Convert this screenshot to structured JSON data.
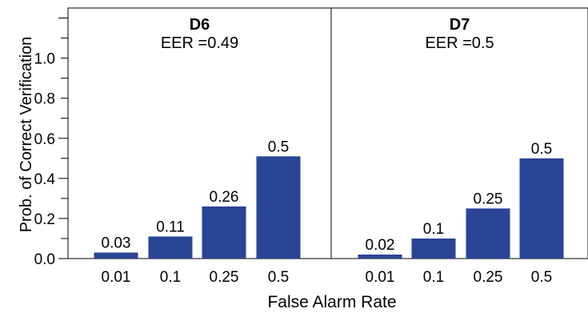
{
  "chart_data": [
    {
      "type": "bar",
      "title": "D6",
      "subtitle": "EER =0.49",
      "categories": [
        "0.01",
        "0.1",
        "0.25",
        "0.5"
      ],
      "values": [
        0.03,
        0.11,
        0.26,
        0.51
      ],
      "value_labels": [
        "0.03",
        "0.11",
        "0.26",
        "0.5"
      ],
      "ylim": [
        0,
        1.25
      ],
      "yticks": [
        0.0,
        0.2,
        0.4,
        0.6,
        0.8,
        1.0
      ],
      "ytick_labels": [
        "0.0",
        "0.2",
        "0.4",
        "0.6",
        "0.8",
        "1.0"
      ],
      "grid": false,
      "color": "#2a4596"
    },
    {
      "type": "bar",
      "title": "D7",
      "subtitle": "EER =0.5",
      "categories": [
        "0.01",
        "0.1",
        "0.25",
        "0.5"
      ],
      "values": [
        0.02,
        0.1,
        0.25,
        0.5
      ],
      "value_labels": [
        "0.02",
        "0.1",
        "0.25",
        "0.5"
      ],
      "ylim": [
        0,
        1.25
      ],
      "grid": false,
      "color": "#2a4596"
    }
  ],
  "xlabel": "False Alarm Rate",
  "ylabel": "Prob. of Correct Verification"
}
